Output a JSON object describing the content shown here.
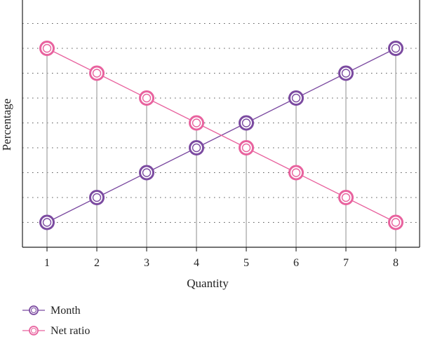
{
  "chart_data": {
    "type": "line",
    "xlabel": "Quantity",
    "ylabel": "Percentage",
    "x": [
      1,
      2,
      3,
      4,
      5,
      6,
      7,
      8
    ],
    "ylim": [
      0,
      9
    ],
    "grid": "horizontal dotted",
    "legend_position": "bottom-left",
    "series": [
      {
        "name": "Month",
        "color": "#7b4aa0",
        "values": [
          1,
          2,
          3,
          4,
          5,
          6,
          7,
          8
        ]
      },
      {
        "name": "Net ratio",
        "color": "#e8629e",
        "values": [
          8,
          7,
          6,
          5,
          4,
          3,
          2,
          1
        ]
      }
    ]
  }
}
